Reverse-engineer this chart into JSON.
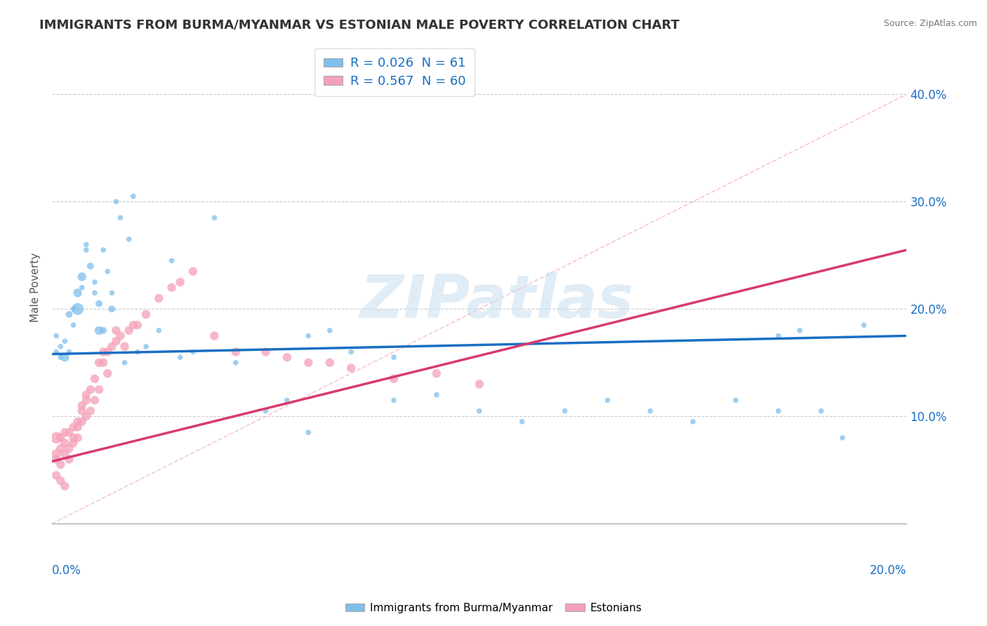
{
  "title": "IMMIGRANTS FROM BURMA/MYANMAR VS ESTONIAN MALE POVERTY CORRELATION CHART",
  "source": "Source: ZipAtlas.com",
  "ylabel": "Male Poverty",
  "legend1_R": "0.026",
  "legend1_N": "61",
  "legend2_R": "0.567",
  "legend2_N": "60",
  "legend1_label": "Immigrants from Burma/Myanmar",
  "legend2_label": "Estonians",
  "blue_color": "#7fbfea",
  "pink_color": "#f4a0b8",
  "blue_line_color": "#1a6fc4",
  "pink_line_color": "#d63b6e",
  "xlim": [
    0.0,
    0.2
  ],
  "ylim": [
    0.0,
    0.44
  ],
  "blue_scatter_x": [
    0.001,
    0.001,
    0.002,
    0.002,
    0.003,
    0.003,
    0.004,
    0.004,
    0.005,
    0.005,
    0.006,
    0.006,
    0.007,
    0.007,
    0.008,
    0.008,
    0.009,
    0.01,
    0.01,
    0.011,
    0.011,
    0.012,
    0.012,
    0.013,
    0.014,
    0.014,
    0.015,
    0.016,
    0.017,
    0.018,
    0.019,
    0.02,
    0.022,
    0.025,
    0.028,
    0.03,
    0.033,
    0.038,
    0.043,
    0.05,
    0.055,
    0.06,
    0.065,
    0.07,
    0.08,
    0.09,
    0.1,
    0.11,
    0.12,
    0.13,
    0.14,
    0.15,
    0.16,
    0.17,
    0.175,
    0.18,
    0.185,
    0.19,
    0.06,
    0.08,
    0.17
  ],
  "blue_scatter_y": [
    0.175,
    0.16,
    0.165,
    0.155,
    0.17,
    0.155,
    0.195,
    0.16,
    0.185,
    0.2,
    0.215,
    0.2,
    0.23,
    0.22,
    0.255,
    0.26,
    0.24,
    0.225,
    0.215,
    0.205,
    0.18,
    0.18,
    0.255,
    0.235,
    0.215,
    0.2,
    0.3,
    0.285,
    0.15,
    0.265,
    0.305,
    0.16,
    0.165,
    0.18,
    0.245,
    0.155,
    0.16,
    0.285,
    0.15,
    0.105,
    0.115,
    0.085,
    0.18,
    0.16,
    0.155,
    0.12,
    0.105,
    0.095,
    0.105,
    0.115,
    0.105,
    0.095,
    0.115,
    0.105,
    0.18,
    0.105,
    0.08,
    0.185,
    0.175,
    0.115,
    0.175
  ],
  "blue_scatter_size": [
    30,
    30,
    30,
    30,
    30,
    80,
    50,
    30,
    30,
    30,
    80,
    150,
    80,
    30,
    30,
    30,
    50,
    30,
    30,
    50,
    80,
    50,
    30,
    30,
    30,
    50,
    30,
    30,
    30,
    30,
    30,
    30,
    30,
    30,
    30,
    30,
    30,
    30,
    30,
    30,
    30,
    30,
    30,
    30,
    30,
    30,
    30,
    30,
    30,
    30,
    30,
    30,
    30,
    30,
    30,
    30,
    30,
    30,
    30,
    30,
    30
  ],
  "pink_scatter_x": [
    0.001,
    0.001,
    0.001,
    0.002,
    0.002,
    0.002,
    0.003,
    0.003,
    0.003,
    0.004,
    0.004,
    0.004,
    0.005,
    0.005,
    0.005,
    0.006,
    0.006,
    0.006,
    0.007,
    0.007,
    0.007,
    0.008,
    0.008,
    0.008,
    0.009,
    0.009,
    0.01,
    0.01,
    0.011,
    0.011,
    0.012,
    0.012,
    0.013,
    0.013,
    0.014,
    0.015,
    0.015,
    0.016,
    0.017,
    0.018,
    0.019,
    0.02,
    0.022,
    0.025,
    0.028,
    0.03,
    0.033,
    0.038,
    0.043,
    0.05,
    0.055,
    0.06,
    0.065,
    0.07,
    0.08,
    0.09,
    0.1,
    0.001,
    0.002,
    0.003
  ],
  "pink_scatter_y": [
    0.06,
    0.065,
    0.08,
    0.055,
    0.07,
    0.08,
    0.065,
    0.075,
    0.085,
    0.06,
    0.07,
    0.085,
    0.075,
    0.08,
    0.09,
    0.08,
    0.09,
    0.095,
    0.095,
    0.105,
    0.11,
    0.1,
    0.115,
    0.12,
    0.105,
    0.125,
    0.115,
    0.135,
    0.125,
    0.15,
    0.15,
    0.16,
    0.14,
    0.16,
    0.165,
    0.17,
    0.18,
    0.175,
    0.165,
    0.18,
    0.185,
    0.185,
    0.195,
    0.21,
    0.22,
    0.225,
    0.235,
    0.175,
    0.16,
    0.16,
    0.155,
    0.15,
    0.15,
    0.145,
    0.135,
    0.14,
    0.13,
    0.045,
    0.04,
    0.035
  ],
  "pink_scatter_size": [
    80,
    100,
    140,
    80,
    80,
    80,
    80,
    80,
    80,
    80,
    80,
    80,
    80,
    80,
    80,
    80,
    80,
    80,
    80,
    80,
    80,
    80,
    80,
    80,
    80,
    80,
    80,
    80,
    80,
    80,
    80,
    80,
    80,
    80,
    80,
    80,
    80,
    80,
    80,
    80,
    80,
    80,
    80,
    80,
    80,
    80,
    80,
    80,
    80,
    80,
    80,
    80,
    80,
    80,
    80,
    80,
    80,
    80,
    80,
    80
  ],
  "blue_line_y0": 0.158,
  "blue_line_y1": 0.175,
  "pink_line_y0": 0.058,
  "pink_line_y1": 0.255,
  "watermark_text": "ZIPatlas",
  "title_fontsize": 13,
  "source_fontsize": 9,
  "label_fontsize": 11
}
